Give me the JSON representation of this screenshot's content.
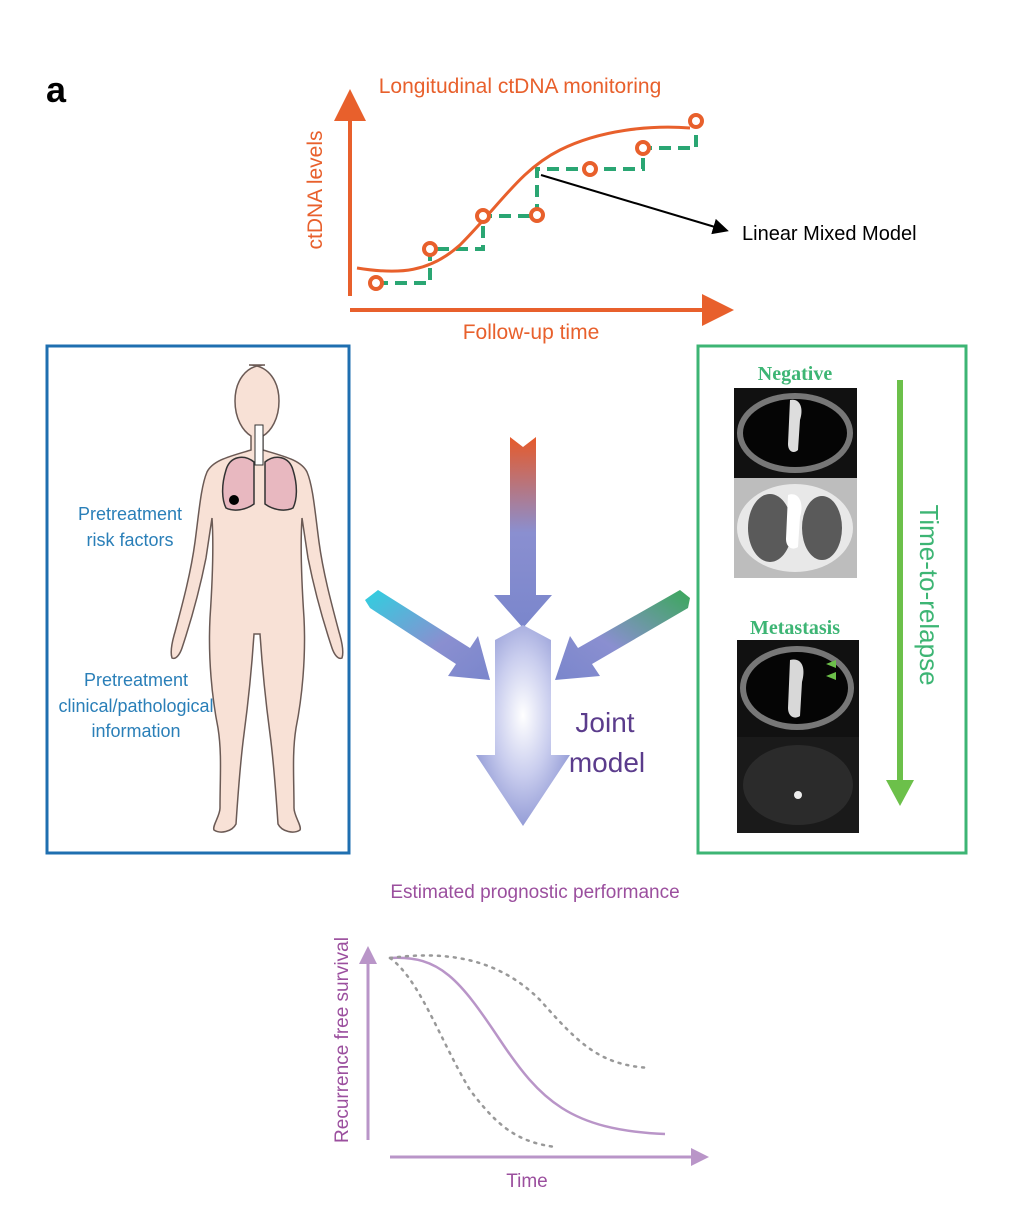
{
  "panel_label": "a",
  "top_chart": {
    "title": "Longitudinal ctDNA monitoring",
    "ylabel": "ctDNA levels",
    "xlabel": "Follow-up time",
    "annotation": "Linear Mixed Model",
    "color": "#e8602c",
    "step_color": "#2aa673"
  },
  "left_box": {
    "label_1_line1": "Pretreatment",
    "label_1_line2": "risk factors",
    "label_2_line1": "Pretreatment",
    "label_2_line2": "clinical/pathological",
    "label_2_line3": "information",
    "color": "#1f6fb0",
    "text_color": "#2a7fb8"
  },
  "right_box": {
    "label_negative": "Negative",
    "label_metastasis": "Metastasis",
    "arrow_label": "Time-to-relapse",
    "color": "#3db574",
    "arrow_color": "#6cc04a"
  },
  "center": {
    "label_line1": "Joint",
    "label_line2": "model",
    "color": "#5b3c8c"
  },
  "bottom_chart": {
    "title": "Estimated prognostic performance",
    "ylabel": "Recurrence free survival",
    "xlabel": "Time",
    "title_color": "#9b4f9e",
    "curve_color": "#b995c8"
  }
}
